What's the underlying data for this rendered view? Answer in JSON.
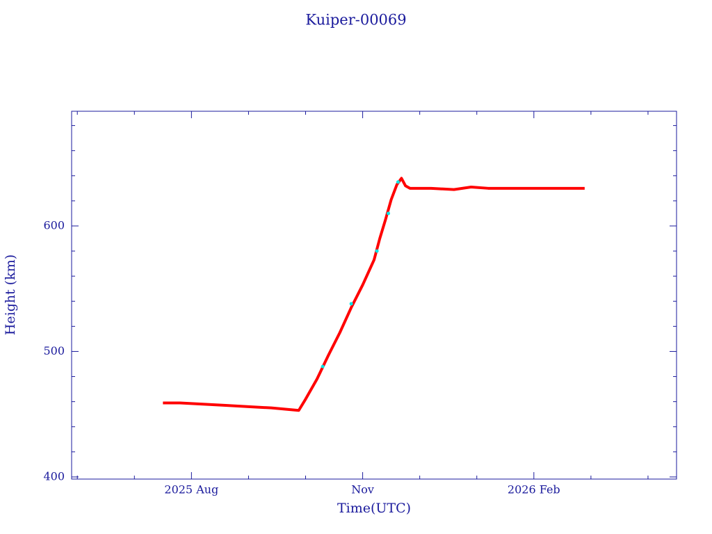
{
  "chart_data": {
    "type": "line",
    "title": "Kuiper-00069",
    "x_label": "Time(UTC)",
    "y_label": "Height (km)",
    "series": [
      {
        "color": "#ff0000",
        "x": [
          7.5,
          7.8,
          8.2,
          8.6,
          9.0,
          9.4,
          9.88,
          10.0,
          10.2,
          10.4,
          10.6,
          10.8,
          11.0,
          11.2,
          11.3,
          11.4,
          11.5,
          11.6,
          11.68,
          11.75,
          11.83,
          12.2,
          12.6,
          12.9,
          13.2,
          13.6,
          14.0,
          14.4,
          14.89
        ],
        "values": [
          459,
          459,
          458,
          457,
          456,
          455,
          453,
          462,
          478,
          497,
          515,
          535,
          553,
          573,
          590,
          605,
          621,
          633,
          638,
          632,
          630,
          630,
          629,
          631,
          630,
          630,
          630,
          630,
          630
        ]
      },
      {
        "color": "#00e5e5",
        "x": [
          10.3,
          10.8,
          11.25,
          11.45,
          11.62
        ],
        "values": [
          488,
          538,
          580,
          610,
          635
        ]
      }
    ],
    "xlim": [
      5.9,
      16.5
    ],
    "xticks": [
      {
        "value": 8,
        "label": "2025 Aug"
      },
      {
        "value": 11,
        "label": "Nov"
      },
      {
        "value": 14,
        "label": "2026 Feb"
      }
    ],
    "xminorticks": [
      6,
      7,
      9,
      10,
      12,
      13,
      15,
      16
    ],
    "ylim": [
      398.3,
      691.4
    ],
    "yticks": [
      400,
      500,
      600
    ],
    "yminorticks": [
      420,
      440,
      460,
      480,
      520,
      540,
      560,
      580,
      620,
      640,
      660,
      680
    ]
  }
}
